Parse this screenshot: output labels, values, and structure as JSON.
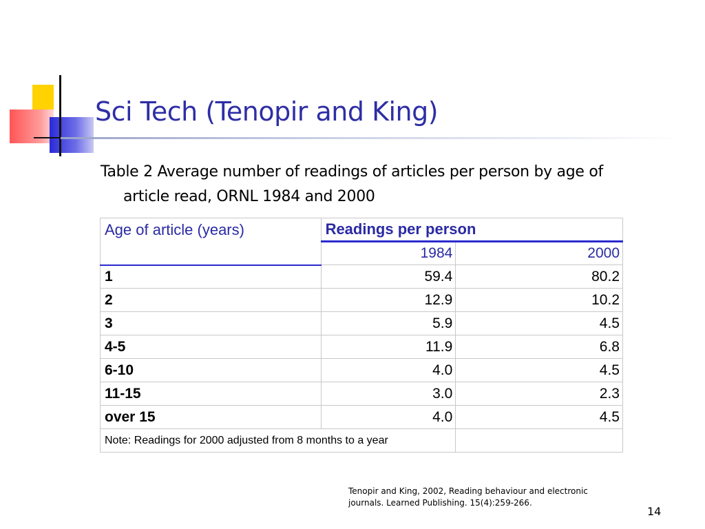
{
  "slide": {
    "title": "Sci Tech (Tenopir and King)",
    "caption": "Table 2 Average number of readings of articles per person by age of article read, ORNL 1984 and 2000",
    "page_number": "14",
    "reference_line1": "Tenopir and King, 2002, Reading behaviour and electronic",
    "reference_line2": "journals. Learned Publishing. 15(4):259-266.",
    "colors": {
      "title": "#2e2ea6",
      "accent_blue": "#2a2ad0",
      "yellow": "#ffd200",
      "red": "#ff5555"
    }
  },
  "table": {
    "header_age": "Age of article (years)",
    "header_group": "Readings per person",
    "year1": "1984",
    "year2": "2000",
    "rows": [
      {
        "age": "1",
        "v1984": "59.4",
        "v2000": "80.2"
      },
      {
        "age": "2",
        "v1984": "12.9",
        "v2000": "10.2"
      },
      {
        "age": "3",
        "v1984": "5.9",
        "v2000": "4.5"
      },
      {
        "age": "4-5",
        "v1984": "11.9",
        "v2000": "6.8"
      },
      {
        "age": "6-10",
        "v1984": "4.0",
        "v2000": "4.5"
      },
      {
        "age": "11-15",
        "v1984": "3.0",
        "v2000": "2.3"
      },
      {
        "age": "over 15",
        "v1984": "4.0",
        "v2000": "4.5"
      }
    ],
    "note": "Note: Readings for 2000 adjusted from 8 months to a year"
  }
}
